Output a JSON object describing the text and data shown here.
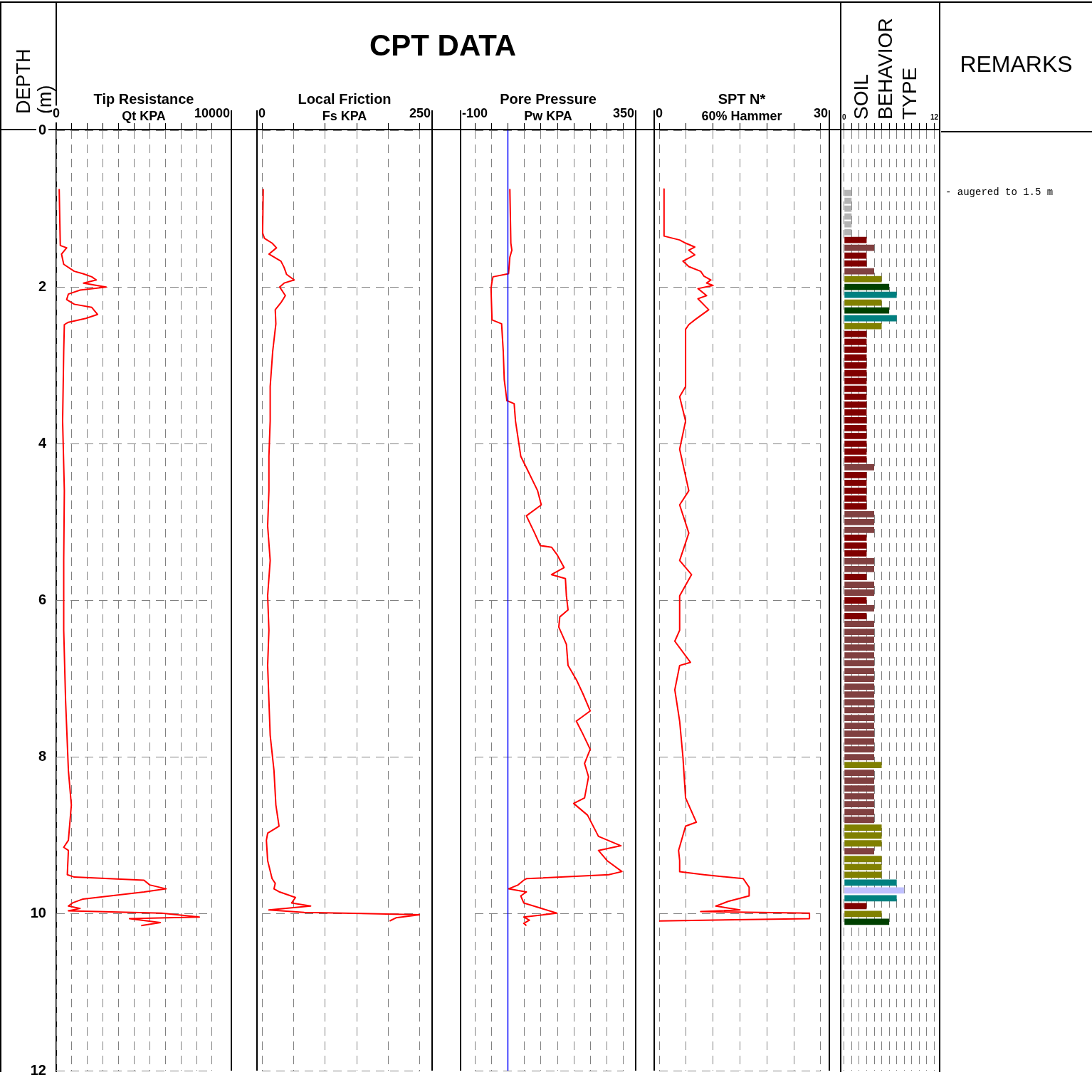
{
  "chart_data": [
    {
      "type": "line",
      "title": "Tip Resistance",
      "xlabel": "Qt KPA",
      "ylabel": "DEPTH (m)",
      "annotations": [
        "CPT DATA"
      ],
      "xlim": [
        0,
        10000
      ],
      "xticks": [
        0,
        {
          "value": 1000,
          "label": null
        },
        {
          "value": 2000,
          "label": null
        },
        {
          "value": 3000,
          "label": null
        },
        {
          "value": 4000,
          "label": null
        },
        {
          "value": 5000,
          "label": null
        },
        {
          "value": 6000,
          "label": null
        },
        {
          "value": 7000,
          "label": null
        },
        {
          "value": 8000,
          "label": null
        },
        {
          "value": 9000,
          "label": null
        },
        10000
      ],
      "ylim": [
        12,
        0
      ],
      "yticks": [
        0,
        2,
        4,
        6,
        8,
        10,
        12
      ],
      "grid": true,
      "legend": false,
      "marker": "none",
      "line_style": "solid",
      "series": [
        {
          "color": "#ff0000",
          "x": [
            190,
            260,
            670,
            340,
            480,
            1160,
            1720,
            2280,
            2570,
            1750,
            3200,
            1530,
            780,
            670,
            1160,
            2280,
            2650,
            1900,
            780,
            520,
            480,
            410,
            520,
            480,
            480,
            600,
            780,
            970,
            780,
            480,
            780,
            710,
            1160,
            5630,
            6000,
            7050,
            5630,
            1720,
            1040,
            780,
            1530,
            780,
            6750,
            9180,
            4700,
            6680,
            5450
          ],
          "values": [
            0.75,
            1.47,
            1.5,
            1.58,
            1.71,
            1.8,
            1.83,
            1.87,
            1.91,
            1.95,
            2.0,
            2.04,
            2.09,
            2.16,
            2.22,
            2.26,
            2.35,
            2.4,
            2.45,
            2.48,
            2.82,
            3.71,
            4.6,
            5.49,
            6.38,
            7.28,
            8.17,
            8.61,
            9.06,
            9.15,
            9.19,
            9.5,
            9.53,
            9.57,
            9.63,
            9.68,
            9.72,
            9.81,
            9.86,
            9.9,
            9.93,
            9.96,
            9.99,
            10.04,
            10.06,
            10.11,
            10.15
          ]
        }
      ]
    },
    {
      "type": "line",
      "title": "Local Friction",
      "xlabel": "Fs KPA",
      "xlim": [
        0,
        250
      ],
      "xticks": [
        0,
        {
          "value": 50,
          "label": null
        },
        {
          "value": 100,
          "label": null
        },
        {
          "value": 150,
          "label": null
        },
        {
          "value": 200,
          "label": null
        },
        250
      ],
      "ylim": [
        12,
        0
      ],
      "yticks": [
        0,
        2,
        4,
        6,
        8,
        10,
        12
      ],
      "tick_labels": "x",
      "grid": true,
      "legend": false,
      "marker": "none",
      "line_style": "solid",
      "series": [
        {
          "color": "#ff0000",
          "x": [
            2,
            1,
            4,
            16,
            23,
            11,
            30,
            35,
            39,
            51,
            35,
            28,
            37,
            30,
            21,
            22,
            17,
            13,
            13,
            11,
            11,
            9,
            13,
            9,
            11,
            9,
            11,
            13,
            19,
            22,
            27,
            9,
            7,
            9,
            16,
            21,
            19,
            28,
            53,
            47,
            77,
            11,
            67,
            250,
            212,
            202
          ],
          "values": [
            0.75,
            1.31,
            1.38,
            1.44,
            1.5,
            1.58,
            1.67,
            1.75,
            1.84,
            1.91,
            1.95,
            2.0,
            2.11,
            2.2,
            2.29,
            2.47,
            2.82,
            3.27,
            3.71,
            4.16,
            4.6,
            5.05,
            5.49,
            5.94,
            6.38,
            6.83,
            7.28,
            7.72,
            8.17,
            8.61,
            8.88,
            8.97,
            9.06,
            9.32,
            9.55,
            9.61,
            9.68,
            9.72,
            9.79,
            9.86,
            9.9,
            9.95,
            9.98,
            10.01,
            10.05,
            10.09
          ]
        }
      ]
    },
    {
      "type": "line",
      "title": "Pore Pressure",
      "xlabel": "Pw KPA",
      "xlim": [
        -100,
        350
      ],
      "xticks": [
        -100,
        {
          "value": -50,
          "label": null
        },
        {
          "value": 0,
          "label": null
        },
        {
          "value": 50,
          "label": null
        },
        {
          "value": 100,
          "label": null
        },
        {
          "value": 150,
          "label": null
        },
        {
          "value": 200,
          "label": null
        },
        {
          "value": 250,
          "label": null
        },
        {
          "value": 300,
          "label": null
        },
        350
      ],
      "ylim": [
        12,
        0
      ],
      "yticks": [
        0,
        2,
        4,
        6,
        8,
        10,
        12
      ],
      "tick_labels": "x",
      "grid": true,
      "legend": false,
      "marker": "none",
      "line_style": "solid",
      "ref_lines": [
        {
          "axis": "x",
          "value": 0,
          "color": "#0000ff"
        }
      ],
      "series": [
        {
          "color": "#ff0000",
          "x": [
            6,
            9,
            12,
            6,
            2,
            -45,
            -48,
            -51,
            -48,
            -19,
            -14,
            -11,
            -3,
            19,
            23,
            39,
            60,
            90,
            101,
            56,
            81,
            98,
            132,
            148,
            170,
            132,
            174,
            177,
            182,
            157,
            154,
            177,
            182,
            207,
            227,
            249,
            207,
            224,
            249,
            232,
            244,
            232,
            199,
            241,
            274,
            342,
            274,
            300,
            345,
            305,
            56,
            48,
            31,
            2,
            56,
            39,
            48,
            148,
            48,
            65,
            48,
            56
          ],
          "values": [
            0.75,
            1.44,
            1.53,
            1.62,
            1.83,
            1.87,
            1.93,
            2.02,
            2.42,
            2.47,
            2.82,
            3.18,
            3.45,
            3.49,
            3.71,
            4.16,
            4.34,
            4.6,
            4.78,
            4.92,
            5.14,
            5.3,
            5.32,
            5.41,
            5.58,
            5.67,
            5.72,
            5.94,
            6.12,
            6.21,
            6.34,
            6.56,
            6.83,
            7.01,
            7.19,
            7.41,
            7.54,
            7.68,
            7.9,
            8.08,
            8.25,
            8.52,
            8.59,
            8.74,
            9.01,
            9.13,
            9.19,
            9.32,
            9.46,
            9.5,
            9.55,
            9.57,
            9.63,
            9.68,
            9.72,
            9.77,
            9.86,
            9.99,
            10.04,
            10.08,
            10.12,
            10.15
          ]
        }
      ]
    },
    {
      "type": "line",
      "title": "SPT N*",
      "xlabel": "60% Hammer",
      "xlim": [
        0,
        30
      ],
      "xticks": [
        0,
        {
          "value": 5,
          "label": null
        },
        {
          "value": 10,
          "label": null
        },
        {
          "value": 15,
          "label": null
        },
        {
          "value": 20,
          "label": null
        },
        {
          "value": 25,
          "label": null
        },
        30
      ],
      "ylim": [
        12,
        0
      ],
      "yticks": [
        0,
        2,
        4,
        6,
        8,
        10,
        12
      ],
      "tick_labels": "x",
      "grid": true,
      "legend": false,
      "marker": "none",
      "line_style": "solid",
      "series": [
        {
          "color": "#ff0000",
          "x": [
            0.9,
            0.9,
            3.8,
            4.9,
            6.6,
            5.5,
            6.6,
            4.4,
            5.5,
            7.7,
            8.3,
            9.6,
            8.8,
            10.0,
            7.2,
            8.8,
            7.2,
            9.2,
            6.6,
            5.5,
            4.9,
            4.9,
            3.8,
            4.9,
            3.8,
            5.5,
            3.8,
            5.5,
            3.8,
            6.0,
            3.8,
            3.8,
            2.9,
            5.8,
            3.8,
            2.9,
            3.8,
            4.4,
            4.9,
            6.9,
            4.9,
            3.6,
            3.8,
            3.8,
            8.3,
            15.6,
            16.7,
            16.7,
            12.8,
            10.5,
            15.0,
            7.7,
            27.9,
            27.9,
            0
          ],
          "values": [
            0.75,
            1.35,
            1.4,
            1.44,
            1.49,
            1.53,
            1.59,
            1.67,
            1.74,
            1.8,
            1.86,
            1.91,
            1.95,
            1.98,
            2.02,
            2.11,
            2.15,
            2.29,
            2.42,
            2.48,
            2.54,
            3.27,
            3.4,
            3.71,
            4.07,
            4.6,
            4.78,
            5.14,
            5.49,
            5.67,
            5.94,
            6.38,
            6.52,
            6.79,
            6.83,
            7.14,
            7.54,
            7.99,
            8.52,
            8.83,
            8.88,
            9.19,
            9.32,
            9.46,
            9.5,
            9.55,
            9.66,
            9.77,
            9.84,
            9.9,
            9.95,
            9.97,
            9.99,
            10.06,
            10.09
          ]
        }
      ]
    },
    {
      "type": "bar",
      "orientation": "horizontal",
      "title": "SOIL BEHAVIOR TYPE",
      "annotations": [
        "REMARKS",
        "- augered to 1.5 m"
      ],
      "xlim": [
        0,
        12
      ],
      "xticks": [
        0,
        {
          "value": 1,
          "label": null
        },
        {
          "value": 2,
          "label": null
        },
        {
          "value": 3,
          "label": null
        },
        {
          "value": 4,
          "label": null
        },
        {
          "value": 5,
          "label": null
        },
        {
          "value": 6,
          "label": null
        },
        {
          "value": 7,
          "label": null
        },
        {
          "value": 8,
          "label": null
        },
        {
          "value": 9,
          "label": null
        },
        {
          "value": 10,
          "label": null
        },
        {
          "value": 11,
          "label": null
        },
        12
      ],
      "ylim": [
        12,
        0
      ],
      "tick_labels": "x",
      "grid": "x",
      "legend": false,
      "series": [
        {
          "color": "#b4b4b4",
          "x": [
            0.8,
            0.9,
            1.0,
            1.1,
            1.2,
            1.3
          ],
          "values": [
            1,
            1,
            1,
            1,
            1,
            1
          ]
        },
        {
          "color": "#800000",
          "x": [
            1.4,
            1.6,
            1.7,
            2.6,
            2.7,
            2.8,
            2.9,
            3.0,
            3.1,
            3.2,
            3.3,
            3.4,
            3.5,
            3.6,
            3.7,
            3.8,
            3.9,
            4.0,
            4.1,
            4.2,
            4.4,
            4.5,
            4.6,
            4.7,
            4.8,
            5.2,
            5.3,
            5.4,
            5.7,
            6.0,
            6.2,
            9.9
          ],
          "values": [
            3,
            3,
            3,
            3,
            3,
            3,
            3,
            3,
            3,
            3,
            3,
            3,
            3,
            3,
            3,
            3,
            3,
            3,
            3,
            3,
            3,
            3,
            3,
            3,
            3,
            3,
            3,
            3,
            3,
            3,
            3,
            3
          ]
        },
        {
          "color": "#804040",
          "x": [
            1.5,
            1.8,
            4.3,
            4.9,
            5.0,
            5.1,
            5.5,
            5.6,
            5.8,
            5.9,
            6.1,
            6.3,
            6.4,
            6.5,
            6.6,
            6.7,
            6.8,
            6.9,
            7.0,
            7.1,
            7.2,
            7.3,
            7.4,
            7.5,
            7.6,
            7.7,
            7.8,
            7.9,
            8.0,
            8.2,
            8.3,
            8.4,
            8.5,
            8.6,
            8.7,
            8.8,
            9.2
          ],
          "values": [
            4,
            4,
            4,
            4,
            4,
            4,
            4,
            4,
            4,
            4,
            4,
            4,
            4,
            4,
            4,
            4,
            4,
            4,
            4,
            4,
            4,
            4,
            4,
            4,
            4,
            4,
            4,
            4,
            4,
            4,
            4,
            4,
            4,
            4,
            4,
            4,
            4
          ]
        },
        {
          "color": "#808000",
          "x": [
            1.9,
            2.2,
            2.5,
            8.1,
            8.9,
            9.0,
            9.1,
            9.3,
            9.4,
            9.5,
            10.0
          ],
          "values": [
            5,
            5,
            5,
            5,
            5,
            5,
            5,
            5,
            5,
            5,
            5
          ]
        },
        {
          "color": "#004000",
          "x": [
            2.0,
            2.3,
            10.1
          ],
          "values": [
            6,
            6,
            6
          ]
        },
        {
          "color": "#008080",
          "x": [
            2.1,
            2.4,
            9.6,
            9.8
          ],
          "values": [
            7,
            7,
            7,
            7
          ]
        },
        {
          "color": "#c0c0ff",
          "x": [
            9.7
          ],
          "values": [
            8
          ]
        }
      ]
    }
  ]
}
